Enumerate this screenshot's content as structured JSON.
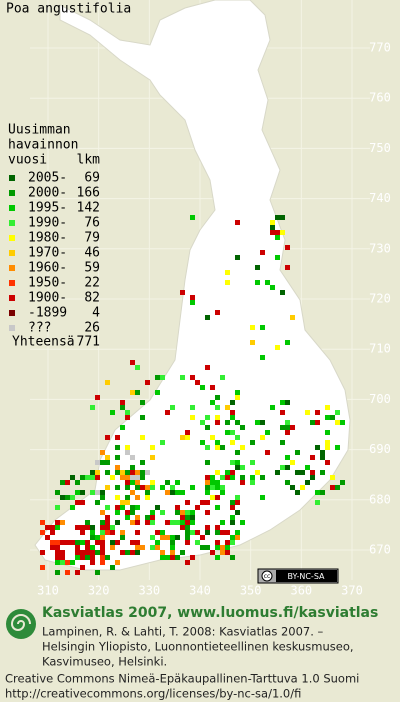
{
  "title": "Poa angustifolia",
  "legend": {
    "heading": [
      "Uusimman",
      "havainnon",
      "vuosi"
    ],
    "count_heading": "lkm",
    "rows": [
      {
        "label": "2005-",
        "count": 69,
        "color": "#006400"
      },
      {
        "label": "2000-",
        "count": 166,
        "color": "#009a00"
      },
      {
        "label": "1995-",
        "count": 142,
        "color": "#00c800"
      },
      {
        "label": "1990-",
        "count": 76,
        "color": "#33ee33"
      },
      {
        "label": "1980-",
        "count": 79,
        "color": "#ffff00"
      },
      {
        "label": "1970-",
        "count": 46,
        "color": "#ffcc00"
      },
      {
        "label": "1960-",
        "count": 59,
        "color": "#ff8c00"
      },
      {
        "label": "1950-",
        "count": 22,
        "color": "#ff3300"
      },
      {
        "label": "1900-",
        "count": 82,
        "color": "#cc0000"
      },
      {
        "label": "-1899",
        "count": 4,
        "color": "#7a0000"
      },
      {
        "label": "???",
        "count": 26,
        "color": "#c8c8c8"
      }
    ],
    "total": {
      "label": "Yhteensä",
      "count": 771
    }
  },
  "map": {
    "xticks": [
      310,
      320,
      330,
      340,
      350,
      360,
      370
    ],
    "yticks": [
      670,
      680,
      690,
      700,
      710,
      720,
      730,
      740,
      750,
      760,
      770
    ],
    "license_badge": "BY-NC-SA"
  },
  "footer": {
    "brand": "Kasviatlas 2007, www.luomus.fi/kasviatlas",
    "citation": [
      "Lampinen, R. & Lahti, T. 2008: Kasviatlas 2007. –",
      "Helsingin Yliopisto, Luonnontieteellinen keskusmuseo,",
      "Kasvimuseo, Helsinki."
    ],
    "license": [
      "Creative Commons Nimeä-Epäkaupallinen-Tarttuva 1.0 Suomi",
      "http://creativecommons.org/licenses/by-nc-sa/1.0/fi"
    ]
  }
}
